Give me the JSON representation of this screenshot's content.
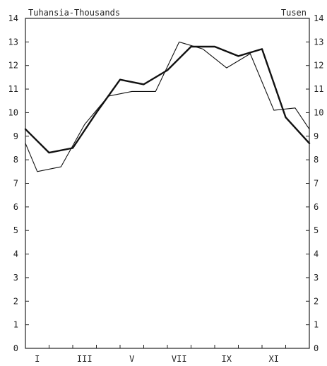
{
  "chart_data": {
    "type": "line",
    "title": "",
    "header_left": "Tuhansia-Thousands",
    "header_right": "Tusen",
    "xlabel": "",
    "ylabel": "",
    "x": [
      1,
      2,
      3,
      4,
      5,
      6,
      7,
      8,
      9,
      10,
      11,
      12,
      13
    ],
    "x_tick_labels": [
      {
        "x": 1.5,
        "label": "I"
      },
      {
        "x": 3.5,
        "label": "III"
      },
      {
        "x": 5.5,
        "label": "V"
      },
      {
        "x": 7.5,
        "label": "VII"
      },
      {
        "x": 9.5,
        "label": "IX"
      },
      {
        "x": 11.5,
        "label": "XI"
      }
    ],
    "xlim": [
      1,
      13
    ],
    "ylim": [
      0,
      14
    ],
    "y_ticks": [
      0,
      1,
      2,
      3,
      4,
      5,
      6,
      7,
      8,
      9,
      10,
      11,
      12,
      13,
      14
    ],
    "series": [
      {
        "values": [
          9.3,
          8.3,
          8.5,
          10.0,
          11.4,
          11.2,
          11.8,
          12.8,
          12.8,
          12.4,
          12.7,
          9.8,
          8.7
        ],
        "color": "#111111",
        "stroke_width": 2.4
      },
      {
        "values": [
          8.7,
          7.5,
          7.7,
          9.5,
          10.7,
          10.9,
          10.9,
          13.0,
          12.7,
          11.9,
          12.5,
          10.1,
          10.2,
          9.3
        ],
        "x": [
          1,
          1.5,
          2.5,
          3.5,
          4.5,
          5.5,
          6.5,
          7.5,
          8.5,
          9.5,
          10.5,
          11.5,
          12.4,
          13
        ],
        "color": "#111111",
        "stroke_width": 1.1
      }
    ],
    "grid": false
  }
}
